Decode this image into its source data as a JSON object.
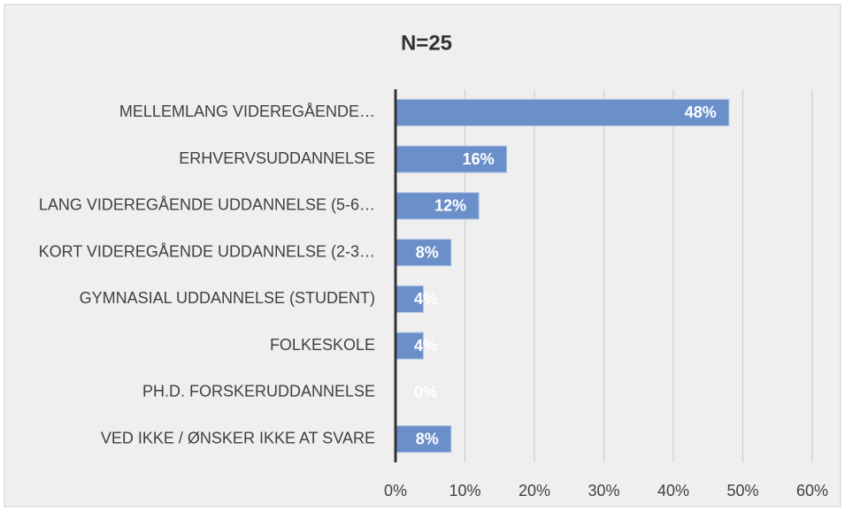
{
  "chart_data": {
    "type": "bar",
    "orientation": "horizontal",
    "title": "N=25",
    "categories": [
      "MELLEMLANG VIDEREGÅENDE…",
      "ERHVERVSUDDANNELSE",
      "LANG VIDEREGÅENDE UDDANNELSE (5-6…",
      "KORT VIDEREGÅENDE UDDANNELSE (2-3…",
      "GYMNASIAL UDDANNELSE (STUDENT)",
      "FOLKESKOLE",
      "PH.D. FORSKERUDDANNELSE",
      "VED IKKE / ØNSKER IKKE AT SVARE"
    ],
    "values": [
      48,
      16,
      12,
      8,
      4,
      4,
      0,
      8
    ],
    "value_labels": [
      "48%",
      "16%",
      "12%",
      "8%",
      "4%",
      "4%",
      "0%",
      "8%"
    ],
    "color": "#6b8fc8",
    "xlim": [
      0,
      60
    ],
    "xticks": [
      {
        "value": 0,
        "label": "0%"
      },
      {
        "value": 10,
        "label": "10%"
      },
      {
        "value": 20,
        "label": "20%"
      },
      {
        "value": 30,
        "label": "30%"
      },
      {
        "value": 40,
        "label": "40%"
      },
      {
        "value": 50,
        "label": "50%"
      },
      {
        "value": 60,
        "label": "60%"
      }
    ],
    "grid": true
  }
}
